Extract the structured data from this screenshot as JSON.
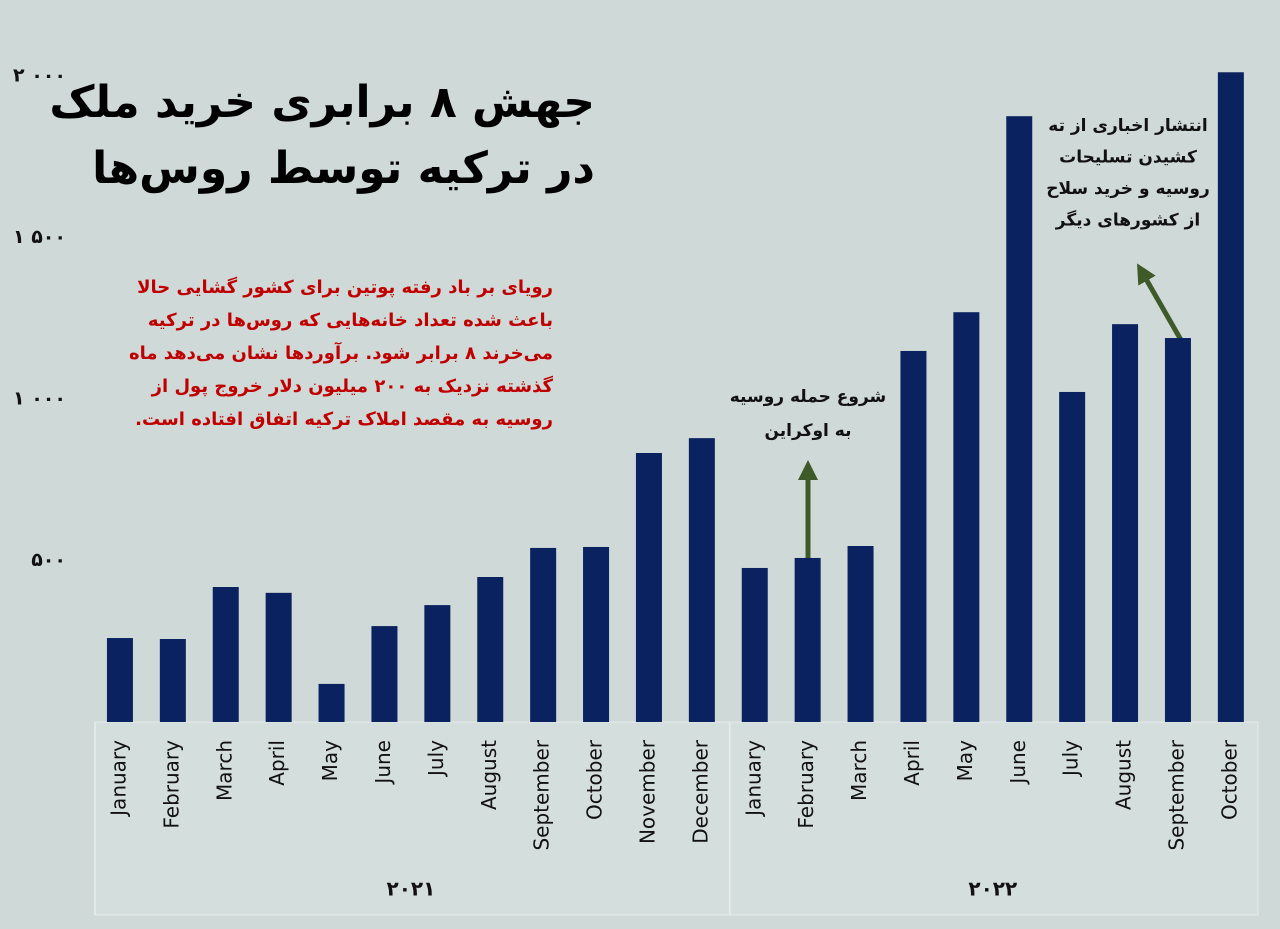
{
  "chart_data": {
    "type": "bar",
    "title": [
      "جهش ۸ برابری خرید ملک",
      "در ترکیه توسط روس‌ها"
    ],
    "subtitle": [
      "رویای بر باد رفته پوتین برای کشور گشایی حالا",
      "باعث شده تعداد خانه‌هایی که روس‌ها در ترکیه",
      "می‌خرند ۸ برابر شود. برآوردها نشان می‌دهد ماه",
      "گذشته نزدیک به ۲۰۰ میلیون دلار خروج پول از",
      "روسیه به مقصد املاک ترکیه اتفاق افتاده است."
    ],
    "annotations": [
      {
        "text": [
          "شروع حمله روسیه",
          "به اوکراین"
        ]
      },
      {
        "text": [
          "انتشار اخباری از ته",
          "کشیدن تسلیحات",
          "روسیه و خرید سلاح",
          "از کشورهای دیگر"
        ]
      }
    ],
    "color": "#0b2260",
    "groups": [
      {
        "name": "۲۰۲۱",
        "categories": [
          "January",
          "February",
          "March",
          "April",
          "May",
          "June",
          "July",
          "August",
          "September",
          "October",
          "November",
          "December"
        ],
        "values": [
          260,
          257,
          418,
          400,
          118,
          297,
          362,
          449,
          539,
          542,
          833,
          879
        ]
      },
      {
        "name": "۲۰۲۲",
        "categories": [
          "January",
          "February",
          "March",
          "April",
          "May",
          "June",
          "July",
          "August",
          "September",
          "October"
        ],
        "values": [
          477,
          508,
          545,
          1149,
          1269,
          1876,
          1022,
          1232,
          1189,
          2012
        ]
      }
    ],
    "ylim": [
      0,
      2050
    ],
    "yticks": [
      {
        "value": 500,
        "label": "۵۰۰"
      },
      {
        "value": 1000,
        "label": "۱ ۰۰۰"
      },
      {
        "value": 1500,
        "label": "۱ ۵۰۰"
      },
      {
        "value": 2000,
        "label": "۲ ۰۰۰"
      }
    ],
    "grid": false
  }
}
